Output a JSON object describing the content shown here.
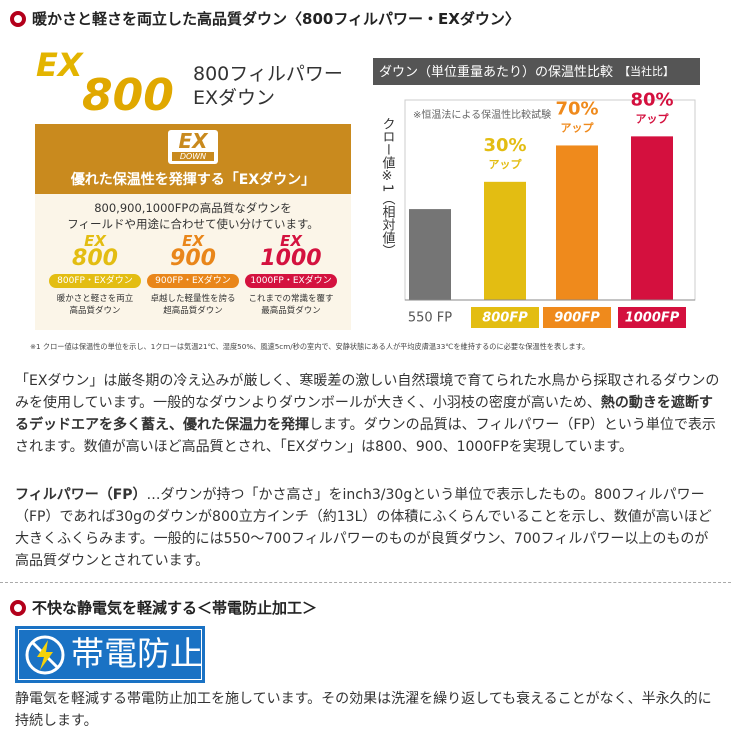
{
  "section1": {
    "heading": "暖かさと軽さを両立した高品質ダウン〈800フィルパワー・EXダウン〉",
    "logo": {
      "ex": "EX",
      "num": "800"
    },
    "spec": [
      "800フィルパワー",
      "EXダウン"
    ],
    "panel": {
      "logo_ex": "EX",
      "logo_sub": "DOWN",
      "title": "優れた保温性を発揮する「EXダウン」",
      "desc": [
        "800,900,1000FPの高品質なダウンを",
        "フィールドや用途に合わせて使い分けています。"
      ],
      "grades": [
        {
          "ex": "EX",
          "num": "800",
          "label": "800FP・EXダウン",
          "caption": [
            "暖かさと軽さを両立",
            "高品質ダウン"
          ],
          "color": "#e3bd12"
        },
        {
          "ex": "EX",
          "num": "900",
          "label": "900FP・EXダウン",
          "caption": [
            "卓越した軽量性を誇る",
            "超高品質ダウン"
          ],
          "color": "#e9861a"
        },
        {
          "ex": "EX",
          "num": "1000",
          "label": "1000FP・EXダウン",
          "caption": [
            "これまでの常識を覆す",
            "最高品質ダウン"
          ],
          "color": "#d4123f"
        }
      ]
    },
    "footnote": "※1 クロー値は保温性の単位を示し、1クローは気温21℃、湿度50%、風速5cm/秒の室内で、安静状態にある人が平均皮膚温33℃を維持するのに必要な保温性を表します。",
    "paragraphs": [
      [
        {
          "text": "「EXダウン」は厳冬期の冷え込みが厳しく、寒暖差の激しい自然環境で育てられた水鳥から採取されるダウンのみを使用しています。一般的なダウンよりダウンボールが大きく、小羽枝の密度が高いため、",
          "bold": false
        },
        {
          "text": "熱の動きを遮断するデッドエアを多く蓄え、優れた保温力を発揮",
          "bold": true
        },
        {
          "text": "します。ダウンの品質は、フィルパワー（FP）という単位で表示されます。数値が高いほど高品質とされ、「EXダウン」は800、900、1000FPを実現しています。",
          "bold": false
        }
      ],
      [
        {
          "text": "フィルパワー（FP）",
          "bold": true
        },
        {
          "text": "…ダウンが持つ「かさ高さ」をinch3/30gという単位で表示したもの。800フィルパワー（FP）であれば30gのダウンが800立方インチ（約13L）の体積にふくらんでいることを示し、数値が高いほど大きくふくらみます。一般的には550〜700フィルパワーのものが良質ダウン、700フィルパワー以上のものが高品質ダウンとされています。",
          "bold": false
        }
      ]
    ]
  },
  "chart_data": {
    "type": "bar",
    "title": "ダウン（単位重量あたり）の保温性比較",
    "title_note": "【当社比】",
    "note": "※恒温法による保温性比較試験",
    "y_label": "クロー値※1（相対値）",
    "categories": [
      "550 FP",
      "800FP",
      "900FP",
      "1000FP"
    ],
    "values": [
      100,
      130,
      170,
      180
    ],
    "increase_labels": [
      null,
      "30%",
      "70%",
      "80%"
    ],
    "increase_word": "アップ",
    "colors": [
      "#757575",
      "#e3bd12",
      "#ef8a1c",
      "#d4103e"
    ],
    "ylim": [
      0,
      220
    ]
  },
  "section2": {
    "heading": "不快な静電気を軽減する＜帯電防止加工＞",
    "badge": "帯電防止",
    "paragraph": "静電気を軽減する帯電防止加工を施しています。その効果は洗濯を繰り返しても衰えることがなく、半永久的に持続します。"
  }
}
